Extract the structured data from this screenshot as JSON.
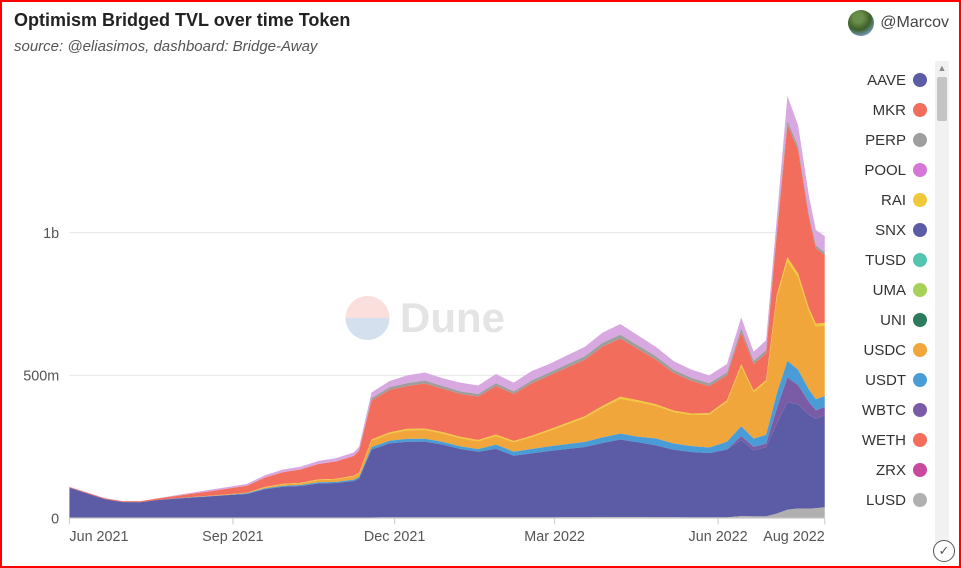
{
  "header": {
    "title": "Optimism Bridged TVL over time Token",
    "subtitle": "source: @eliasimos, dashboard: Bridge-Away",
    "user_handle": "@Marcov"
  },
  "watermark": {
    "text": "Dune"
  },
  "chart": {
    "type": "stacked-area",
    "background_color": "#ffffff",
    "grid_color": "#e8e8e8",
    "axis_color": "#cccccc",
    "label_fontsize": 14,
    "x_axis": {
      "min": 0,
      "max": 425,
      "ticks": [
        {
          "pos": 0,
          "label": "Jun 2021"
        },
        {
          "pos": 92,
          "label": "Sep 2021"
        },
        {
          "pos": 183,
          "label": "Dec 2021"
        },
        {
          "pos": 273,
          "label": "Mar 2022"
        },
        {
          "pos": 365,
          "label": "Jun 2022"
        },
        {
          "pos": 425,
          "label": "Aug 2022"
        }
      ]
    },
    "y_axis": {
      "min": 0,
      "max": 1550000000,
      "ticks": [
        {
          "value": 0,
          "label": "0"
        },
        {
          "value": 500000000,
          "label": "500m"
        },
        {
          "value": 1000000000,
          "label": "1b"
        }
      ]
    },
    "legend": [
      {
        "label": "AAVE",
        "color": "#5c5ca6"
      },
      {
        "label": "MKR",
        "color": "#f26d5b"
      },
      {
        "label": "PERP",
        "color": "#9e9e9e"
      },
      {
        "label": "POOL",
        "color": "#d676d6"
      },
      {
        "label": "RAI",
        "color": "#f0c93a"
      },
      {
        "label": "SNX",
        "color": "#5c5ca6"
      },
      {
        "label": "TUSD",
        "color": "#52c4b0"
      },
      {
        "label": "UMA",
        "color": "#a8d15a"
      },
      {
        "label": "UNI",
        "color": "#2d7a5f"
      },
      {
        "label": "USDC",
        "color": "#f0a63a"
      },
      {
        "label": "USDT",
        "color": "#4a9cd6"
      },
      {
        "label": "WBTC",
        "color": "#7a5ca6"
      },
      {
        "label": "WETH",
        "color": "#f26d5b"
      },
      {
        "label": "ZRX",
        "color": "#c94a9c"
      },
      {
        "label": "LUSD",
        "color": "#b0b0b0"
      }
    ],
    "stacked_top_totals": {
      "x": [
        0,
        10,
        20,
        30,
        40,
        50,
        60,
        70,
        80,
        90,
        100,
        110,
        120,
        130,
        140,
        150,
        160,
        163,
        170,
        180,
        190,
        200,
        210,
        220,
        230,
        240,
        250,
        260,
        270,
        280,
        290,
        300,
        310,
        320,
        330,
        340,
        350,
        360,
        370,
        378,
        385,
        392,
        398,
        404,
        410,
        416,
        420,
        425
      ],
      "total": [
        110,
        90,
        70,
        60,
        60,
        70,
        80,
        90,
        100,
        110,
        120,
        150,
        170,
        180,
        200,
        210,
        230,
        250,
        440,
        480,
        500,
        510,
        490,
        470,
        460,
        500,
        470,
        510,
        540,
        570,
        600,
        650,
        680,
        640,
        600,
        550,
        520,
        500,
        540,
        700,
        580,
        620,
        1050,
        1450,
        1350,
        1100,
        980,
        950
      ]
    },
    "layers": [
      {
        "name": "bottom-grey",
        "color": "#b0b0b0",
        "frac": [
          0.005,
          0.005,
          0.005,
          0.005,
          0.005,
          0.005,
          0.005,
          0.005,
          0.005,
          0.005,
          0.005,
          0.005,
          0.005,
          0.005,
          0.005,
          0.005,
          0.005,
          0.005,
          0.005,
          0.005,
          0.005,
          0.005,
          0.005,
          0.005,
          0.005,
          0.005,
          0.005,
          0.005,
          0.005,
          0.005,
          0.005,
          0.005,
          0.005,
          0.005,
          0.005,
          0.005,
          0.005,
          0.005,
          0.005,
          0.01,
          0.01,
          0.01,
          0.015,
          0.02,
          0.025,
          0.03,
          0.035,
          0.04
        ]
      },
      {
        "name": "snx-blue",
        "color": "#5c5ca6",
        "frac": [
          0.96,
          0.95,
          0.94,
          0.93,
          0.92,
          0.9,
          0.85,
          0.8,
          0.76,
          0.73,
          0.7,
          0.67,
          0.64,
          0.62,
          0.6,
          0.58,
          0.56,
          0.55,
          0.54,
          0.54,
          0.53,
          0.52,
          0.52,
          0.51,
          0.5,
          0.48,
          0.46,
          0.44,
          0.43,
          0.42,
          0.41,
          0.4,
          0.4,
          0.41,
          0.42,
          0.43,
          0.44,
          0.45,
          0.44,
          0.38,
          0.4,
          0.39,
          0.3,
          0.26,
          0.27,
          0.3,
          0.32,
          0.34
        ]
      },
      {
        "name": "wbtc-purple",
        "color": "#7a5ca6",
        "frac": [
          0.0,
          0.0,
          0.0,
          0.0,
          0.0,
          0.0,
          0.0,
          0.0,
          0.0,
          0.0,
          0.0,
          0.0,
          0.0,
          0.0,
          0.0,
          0.0,
          0.0,
          0.0,
          0.0,
          0.0,
          0.0,
          0.0,
          0.0,
          0.0,
          0.0,
          0.0,
          0.0,
          0.0,
          0.0,
          0.0,
          0.0,
          0.0,
          0.0,
          0.0,
          0.0,
          0.0,
          0.0,
          0.0,
          0.0,
          0.02,
          0.02,
          0.02,
          0.05,
          0.06,
          0.05,
          0.04,
          0.03,
          0.03
        ]
      },
      {
        "name": "usdt-blue",
        "color": "#4a9cd6",
        "frac": [
          0.0,
          0.0,
          0.0,
          0.0,
          0.0,
          0.0,
          0.01,
          0.01,
          0.01,
          0.01,
          0.02,
          0.02,
          0.02,
          0.02,
          0.02,
          0.02,
          0.02,
          0.02,
          0.02,
          0.02,
          0.02,
          0.02,
          0.02,
          0.02,
          0.02,
          0.03,
          0.03,
          0.03,
          0.03,
          0.03,
          0.03,
          0.03,
          0.03,
          0.03,
          0.04,
          0.04,
          0.04,
          0.04,
          0.05,
          0.05,
          0.05,
          0.05,
          0.05,
          0.04,
          0.04,
          0.04,
          0.04,
          0.04
        ]
      },
      {
        "name": "usdc-orange",
        "color": "#f0a63a",
        "frac": [
          0.0,
          0.0,
          0.0,
          0.0,
          0.0,
          0.0,
          0.0,
          0.01,
          0.01,
          0.02,
          0.02,
          0.02,
          0.03,
          0.03,
          0.04,
          0.04,
          0.05,
          0.05,
          0.05,
          0.05,
          0.06,
          0.06,
          0.06,
          0.06,
          0.06,
          0.06,
          0.07,
          0.08,
          0.1,
          0.12,
          0.14,
          0.16,
          0.18,
          0.19,
          0.19,
          0.2,
          0.21,
          0.23,
          0.26,
          0.3,
          0.28,
          0.3,
          0.32,
          0.24,
          0.24,
          0.25,
          0.26,
          0.26
        ]
      },
      {
        "name": "rai-yellow",
        "color": "#f0c93a",
        "frac": [
          0.0,
          0.0,
          0.0,
          0.0,
          0.0,
          0.0,
          0.0,
          0.0,
          0.0,
          0.0,
          0.0,
          0.01,
          0.01,
          0.01,
          0.01,
          0.01,
          0.01,
          0.01,
          0.01,
          0.01,
          0.01,
          0.01,
          0.01,
          0.01,
          0.01,
          0.01,
          0.01,
          0.01,
          0.01,
          0.01,
          0.01,
          0.01,
          0.01,
          0.01,
          0.01,
          0.01,
          0.01,
          0.01,
          0.01,
          0.01,
          0.01,
          0.01,
          0.01,
          0.01,
          0.01,
          0.01,
          0.01,
          0.01
        ]
      },
      {
        "name": "weth-red",
        "color": "#f26d5b",
        "frac": [
          0.02,
          0.03,
          0.04,
          0.05,
          0.06,
          0.08,
          0.1,
          0.13,
          0.16,
          0.18,
          0.2,
          0.22,
          0.24,
          0.26,
          0.27,
          0.29,
          0.3,
          0.31,
          0.31,
          0.31,
          0.3,
          0.31,
          0.31,
          0.32,
          0.33,
          0.34,
          0.35,
          0.36,
          0.35,
          0.34,
          0.33,
          0.32,
          0.3,
          0.28,
          0.26,
          0.24,
          0.22,
          0.19,
          0.16,
          0.16,
          0.16,
          0.15,
          0.2,
          0.32,
          0.32,
          0.29,
          0.27,
          0.25
        ]
      },
      {
        "name": "grey-top",
        "color": "#9e9e9e",
        "frac": [
          0.0,
          0.0,
          0.0,
          0.0,
          0.0,
          0.0,
          0.0,
          0.0,
          0.0,
          0.0,
          0.0,
          0.0,
          0.0,
          0.0,
          0.0,
          0.0,
          0.0,
          0.0,
          0.02,
          0.02,
          0.02,
          0.02,
          0.02,
          0.02,
          0.02,
          0.02,
          0.02,
          0.02,
          0.02,
          0.02,
          0.02,
          0.02,
          0.02,
          0.02,
          0.02,
          0.02,
          0.02,
          0.02,
          0.02,
          0.02,
          0.02,
          0.02,
          0.01,
          0.01,
          0.01,
          0.01,
          0.01,
          0.01
        ]
      },
      {
        "name": "pool-pink",
        "color": "#d8a8e0",
        "frac": [
          0.015,
          0.015,
          0.015,
          0.015,
          0.015,
          0.015,
          0.035,
          0.045,
          0.055,
          0.055,
          0.055,
          0.055,
          0.055,
          0.055,
          0.055,
          0.055,
          0.055,
          0.055,
          0.045,
          0.045,
          0.055,
          0.055,
          0.055,
          0.065,
          0.065,
          0.065,
          0.065,
          0.065,
          0.055,
          0.055,
          0.055,
          0.055,
          0.055,
          0.055,
          0.055,
          0.055,
          0.055,
          0.055,
          0.055,
          0.055,
          0.055,
          0.055,
          0.045,
          0.06,
          0.055,
          0.06,
          0.055,
          0.06
        ]
      }
    ]
  }
}
